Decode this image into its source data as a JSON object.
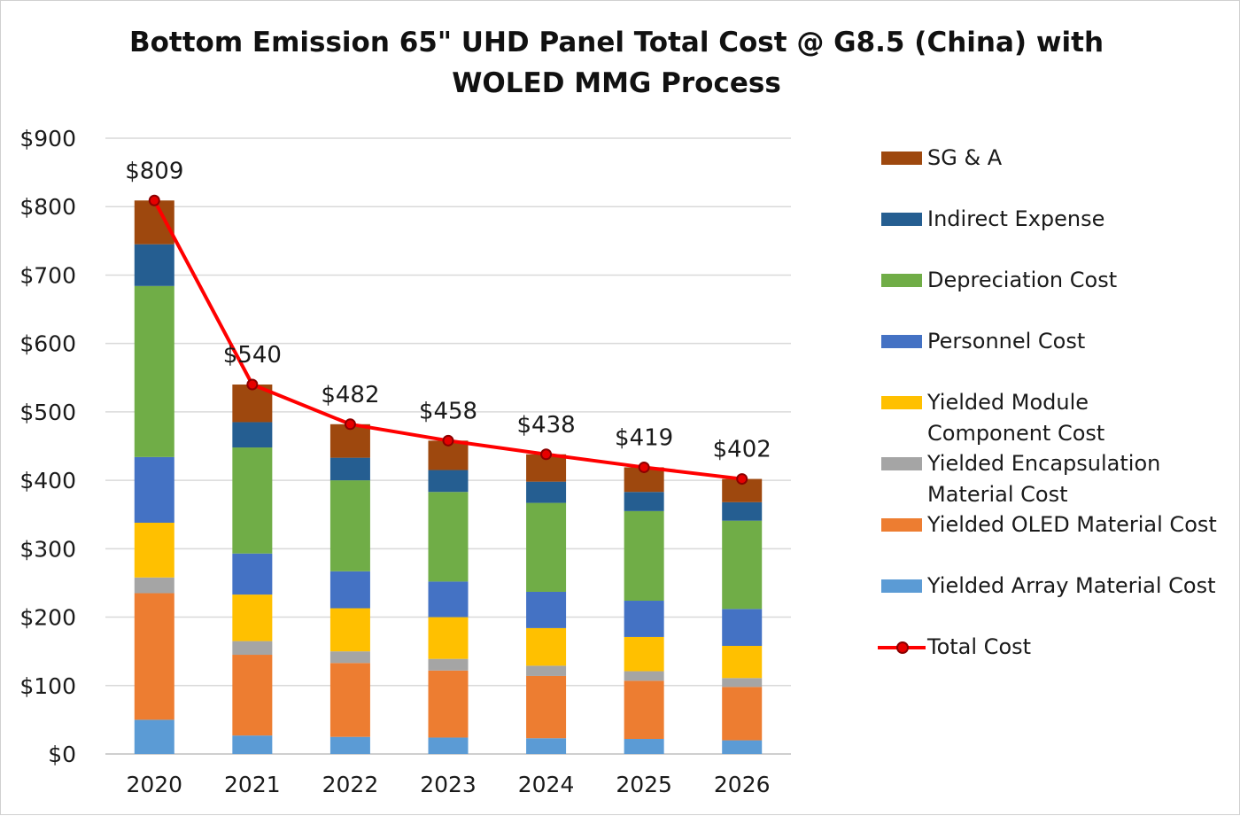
{
  "chart_data": {
    "type": "bar",
    "stacked": true,
    "title": [
      "Bottom Emission 65\" UHD  Panel Total Cost @ G8.5 (China) with",
      "WOLED MMG Process"
    ],
    "categories": [
      "2020",
      "2021",
      "2022",
      "2023",
      "2024",
      "2025",
      "2026"
    ],
    "ylim": [
      0,
      900
    ],
    "y_ticks": [
      "$0",
      "$100",
      "$200",
      "$300",
      "$400",
      "$500",
      "$600",
      "$700",
      "$800",
      "$900"
    ],
    "grid": true,
    "legend_position": "right",
    "series": [
      {
        "name": "Yielded Array Material Cost",
        "color": "#5b9bd5",
        "values": [
          50,
          27,
          25,
          24,
          23,
          22,
          20
        ]
      },
      {
        "name": "Yielded OLED Material Cost",
        "color": "#ed7d31",
        "values": [
          185,
          118,
          108,
          98,
          91,
          85,
          78
        ]
      },
      {
        "name": "Yielded Encapsulation Material Cost",
        "legend_lines": [
          "Yielded Encapsulation",
          "Material Cost"
        ],
        "color": "#a5a5a5",
        "values": [
          23,
          20,
          17,
          17,
          15,
          14,
          13
        ]
      },
      {
        "name": "Yielded Module Component Cost",
        "legend_lines": [
          "Yielded Module",
          "Component Cost"
        ],
        "color": "#ffc000",
        "values": [
          80,
          68,
          63,
          61,
          55,
          50,
          47
        ]
      },
      {
        "name": "Personnel Cost",
        "color": "#4472c4",
        "values": [
          96,
          60,
          54,
          52,
          53,
          53,
          54
        ]
      },
      {
        "name": "Depreciation Cost",
        "color": "#70ad47",
        "values": [
          250,
          155,
          133,
          131,
          130,
          131,
          129
        ]
      },
      {
        "name": "Indirect Expense",
        "color": "#255e91",
        "values": [
          61,
          37,
          33,
          32,
          31,
          28,
          27
        ]
      },
      {
        "name": "SG & A",
        "color": "#9e480e",
        "values": [
          64,
          55,
          49,
          43,
          40,
          36,
          34
        ]
      }
    ],
    "line_series": {
      "name": "Total Cost",
      "color": "#ff0000",
      "values": [
        809,
        540,
        482,
        458,
        438,
        419,
        402
      ],
      "labels": [
        "$809",
        "$540",
        "$482",
        "$458",
        "$438",
        "$419",
        "$402"
      ]
    },
    "legend_order": [
      "SG & A",
      "Indirect Expense",
      "Depreciation Cost",
      "Personnel Cost",
      "Yielded Module Component Cost",
      "Yielded Encapsulation Material Cost",
      "Yielded OLED Material Cost",
      "Yielded Array Material Cost",
      "Total Cost"
    ]
  }
}
